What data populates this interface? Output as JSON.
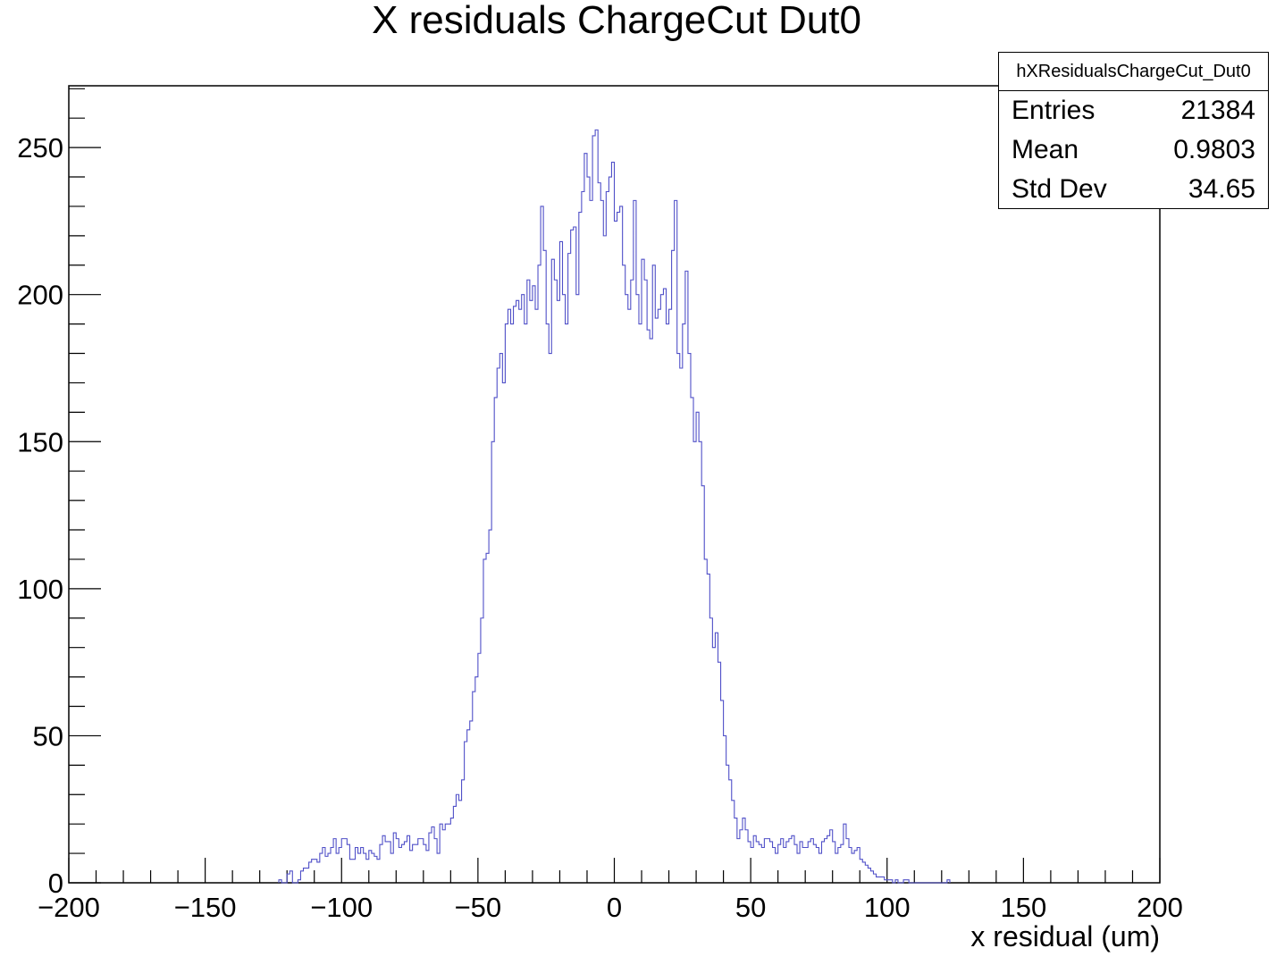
{
  "chart_data": {
    "type": "histogram",
    "title": "X residuals ChargeCut Dut0",
    "xlabel": "x residual (um)",
    "ylabel": "",
    "xlim": [
      -200,
      200
    ],
    "ylim": [
      0,
      271
    ],
    "xticks": [
      "−200",
      "−150",
      "−100",
      "−50",
      "0",
      "50",
      "100",
      "150",
      "200"
    ],
    "xtick_values": [
      -200,
      -150,
      -100,
      -50,
      0,
      50,
      100,
      150,
      200
    ],
    "yticks": [
      "0",
      "50",
      "100",
      "150",
      "200",
      "250"
    ],
    "ytick_values": [
      0,
      50,
      100,
      150,
      200,
      250
    ],
    "line_color": "#5050c8",
    "bin_width": 1,
    "x_start": -123,
    "values": [
      1,
      0,
      0,
      3,
      4,
      0,
      0,
      1,
      4,
      5,
      5,
      7,
      8,
      8,
      7,
      10,
      12,
      9,
      10,
      12,
      15,
      10,
      12,
      15,
      15,
      13,
      8,
      8,
      12,
      10,
      12,
      10,
      8,
      11,
      10,
      9,
      8,
      13,
      16,
      14,
      14,
      10,
      17,
      15,
      12,
      13,
      14,
      16,
      11,
      13,
      13,
      15,
      15,
      13,
      11,
      17,
      19,
      15,
      10,
      20,
      18,
      20,
      20,
      22,
      26,
      30,
      28,
      35,
      48,
      52,
      55,
      65,
      70,
      78,
      90,
      110,
      112,
      120,
      150,
      165,
      175,
      180,
      170,
      190,
      195,
      190,
      196,
      198,
      195,
      200,
      190,
      205,
      198,
      203,
      195,
      210,
      230,
      215,
      190,
      180,
      212,
      205,
      198,
      218,
      200,
      190,
      214,
      222,
      223,
      200,
      228,
      235,
      248,
      240,
      232,
      254,
      256,
      238,
      232,
      220,
      235,
      240,
      245,
      225,
      228,
      230,
      210,
      200,
      195,
      205,
      232,
      200,
      190,
      212,
      205,
      188,
      185,
      210,
      192,
      195,
      200,
      202,
      190,
      195,
      215,
      232,
      180,
      175,
      190,
      208,
      180,
      165,
      150,
      160,
      150,
      135,
      110,
      105,
      90,
      80,
      85,
      75,
      62,
      50,
      40,
      35,
      28,
      22,
      15,
      18,
      22,
      18,
      14,
      12,
      16,
      14,
      13,
      12,
      15,
      15,
      14,
      12,
      10,
      13,
      15,
      12,
      14,
      15,
      16,
      13,
      10,
      14,
      12,
      12,
      14,
      15,
      13,
      12,
      10,
      14,
      15,
      16,
      18,
      14,
      10,
      12,
      13,
      20,
      15,
      12,
      10,
      11,
      12,
      8,
      7,
      6,
      5,
      4,
      3,
      2,
      2,
      2,
      1,
      1,
      1,
      0,
      1,
      0,
      0,
      1,
      1,
      0,
      0,
      0,
      0,
      0,
      0,
      0,
      0,
      0,
      0,
      0,
      0,
      0,
      0,
      1
    ]
  },
  "stats": {
    "name": "hXResidualsChargeCut_Dut0",
    "entries_label": "Entries",
    "entries_value": "21384",
    "mean_label": "Mean",
    "mean_value": "0.9803",
    "stddev_label": "Std Dev",
    "stddev_value": "34.65"
  }
}
